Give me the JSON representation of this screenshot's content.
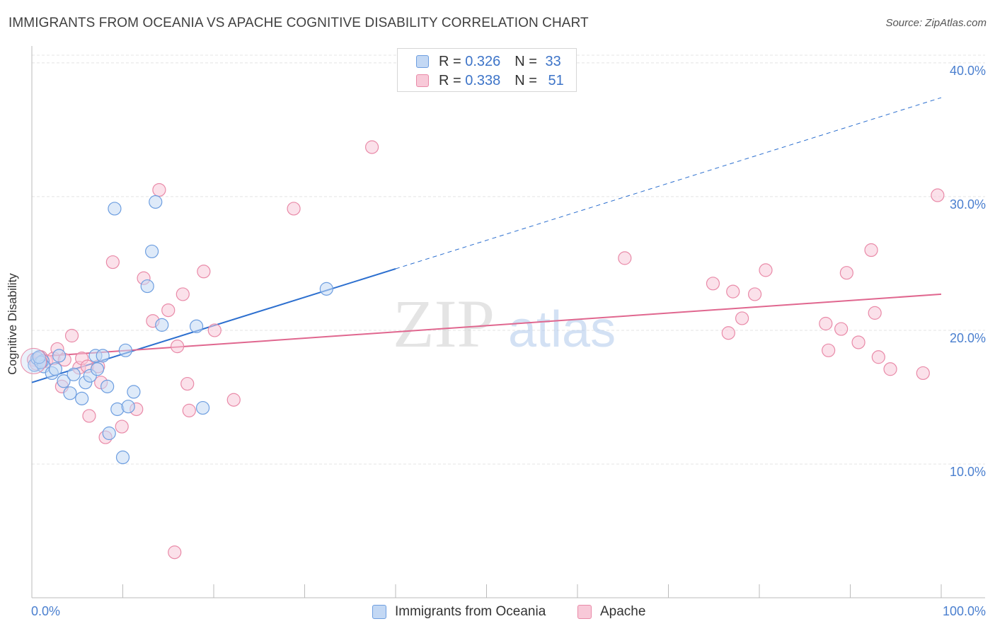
{
  "header": {
    "title": "IMMIGRANTS FROM OCEANIA VS APACHE COGNITIVE DISABILITY CORRELATION CHART",
    "source": "Source: ZipAtlas.com"
  },
  "legend_top": [
    {
      "r_key": "R =",
      "r_value": "0.326",
      "n_key": "N =",
      "n_value": "33"
    },
    {
      "r_key": "R =",
      "r_value": "0.338",
      "n_key": "N =",
      "n_value": "51"
    }
  ],
  "watermark": {
    "zip": "ZIP",
    "atlas": "atlas"
  },
  "chart_data": {
    "type": "scatter",
    "title": "IMMIGRANTS FROM OCEANIA VS APACHE COGNITIVE DISABILITY CORRELATION CHART",
    "xlabel": "",
    "ylabel": "Cognitive Disability",
    "xlim": [
      0,
      100
    ],
    "ylim": [
      0,
      41
    ],
    "x_tick_labels": [
      {
        "value": 0,
        "label": "0.0%"
      },
      {
        "value": 100,
        "label": "100.0%"
      }
    ],
    "y_tick_labels": [
      {
        "value": 10,
        "label": "10.0%"
      },
      {
        "value": 20,
        "label": "20.0%"
      },
      {
        "value": 30,
        "label": "30.0%"
      },
      {
        "value": 40,
        "label": "40.0%"
      }
    ],
    "grid": true,
    "legend_position": "bottom",
    "series": [
      {
        "name": "Immigrants from Oceania",
        "color": "#6d9ee0",
        "fill": "#c3d8f4",
        "r": 0.326,
        "n": 33,
        "trend": {
          "x0": 0,
          "y0": 16.1,
          "x1": 40,
          "y1": 24.6,
          "x_dash_end": 100,
          "y_dash_end": 37.4,
          "color": "#2c6fcf"
        },
        "points": [
          [
            0.3,
            17.4
          ],
          [
            0.6,
            17.9
          ],
          [
            1.2,
            17.7
          ],
          [
            1.3,
            17.3
          ],
          [
            2.2,
            16.8
          ],
          [
            2.6,
            17.1
          ],
          [
            3.0,
            18.1
          ],
          [
            3.5,
            16.2
          ],
          [
            4.2,
            15.3
          ],
          [
            4.6,
            16.7
          ],
          [
            5.5,
            14.9
          ],
          [
            5.9,
            16.1
          ],
          [
            6.4,
            16.6
          ],
          [
            7.2,
            17.1
          ],
          [
            7.0,
            18.1
          ],
          [
            7.8,
            18.1
          ],
          [
            8.3,
            15.8
          ],
          [
            8.5,
            12.3
          ],
          [
            9.1,
            29.1
          ],
          [
            9.4,
            14.1
          ],
          [
            10.0,
            10.5
          ],
          [
            10.3,
            18.5
          ],
          [
            10.6,
            14.3
          ],
          [
            11.2,
            15.4
          ],
          [
            12.7,
            23.3
          ],
          [
            13.2,
            25.9
          ],
          [
            13.6,
            29.6
          ],
          [
            14.3,
            20.4
          ],
          [
            18.1,
            20.3
          ],
          [
            18.8,
            14.2
          ],
          [
            32.4,
            23.1
          ],
          [
            1.0,
            17.6
          ],
          [
            0.8,
            18.0
          ]
        ]
      },
      {
        "name": "Apache",
        "color": "#e98aa8",
        "fill": "#f8c9d8",
        "r": 0.338,
        "n": 51,
        "trend": {
          "x0": 0,
          "y0": 18.0,
          "x1": 100,
          "y1": 22.7,
          "color": "#e0678f"
        },
        "points": [
          [
            0.2,
            17.8
          ],
          [
            1.0,
            18.0
          ],
          [
            1.6,
            17.7
          ],
          [
            2.4,
            17.9
          ],
          [
            2.8,
            18.6
          ],
          [
            3.3,
            15.8
          ],
          [
            3.6,
            17.8
          ],
          [
            4.4,
            19.6
          ],
          [
            5.2,
            17.2
          ],
          [
            5.5,
            17.9
          ],
          [
            6.1,
            17.3
          ],
          [
            6.3,
            13.6
          ],
          [
            7.3,
            17.3
          ],
          [
            7.6,
            16.1
          ],
          [
            8.1,
            12.0
          ],
          [
            8.9,
            25.1
          ],
          [
            9.9,
            12.8
          ],
          [
            11.5,
            14.1
          ],
          [
            12.3,
            23.9
          ],
          [
            13.3,
            20.7
          ],
          [
            14.0,
            30.5
          ],
          [
            15.0,
            21.5
          ],
          [
            15.7,
            3.4
          ],
          [
            16.0,
            18.8
          ],
          [
            16.6,
            22.7
          ],
          [
            17.1,
            16.0
          ],
          [
            17.3,
            14.0
          ],
          [
            18.9,
            24.4
          ],
          [
            20.1,
            20.0
          ],
          [
            22.2,
            14.8
          ],
          [
            28.8,
            29.1
          ],
          [
            37.4,
            33.7
          ],
          [
            65.2,
            25.4
          ],
          [
            74.9,
            23.5
          ],
          [
            76.6,
            19.8
          ],
          [
            77.1,
            22.9
          ],
          [
            78.1,
            20.9
          ],
          [
            79.5,
            22.7
          ],
          [
            80.7,
            24.5
          ],
          [
            87.3,
            20.5
          ],
          [
            87.6,
            18.5
          ],
          [
            89.0,
            20.1
          ],
          [
            89.6,
            24.3
          ],
          [
            90.9,
            19.1
          ],
          [
            92.3,
            26.0
          ],
          [
            92.7,
            21.3
          ],
          [
            93.1,
            18.0
          ],
          [
            94.4,
            17.1
          ],
          [
            98.0,
            16.8
          ],
          [
            99.6,
            30.1
          ],
          [
            0.5,
            17.5
          ]
        ]
      }
    ]
  },
  "bottom_legend": {
    "oceania_label": "Immigrants from Oceania",
    "apache_label": "Apache"
  }
}
